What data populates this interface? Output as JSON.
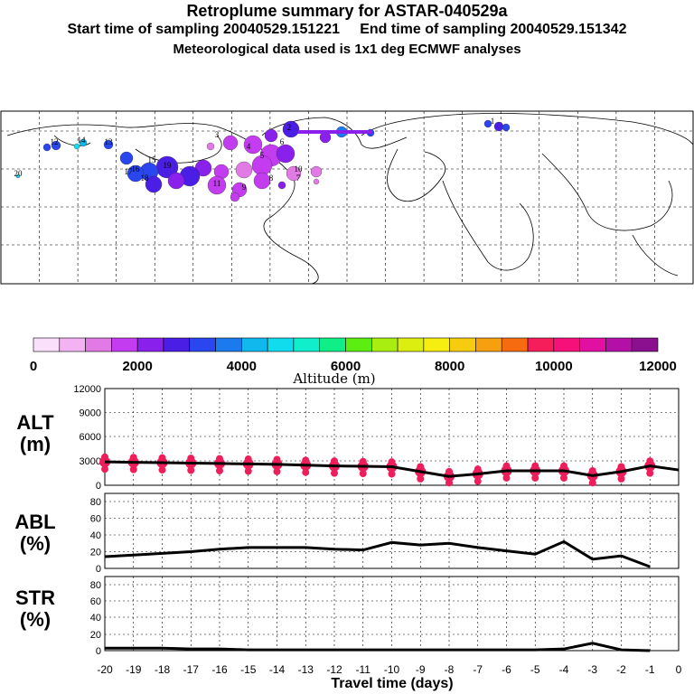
{
  "header": {
    "title": "Retroplume summary for ASTAR-040529a",
    "sampling": "Start time of sampling 20040529.151221     End time of sampling 20040529.151342",
    "meteo": "Meteorological data used is 1x1 deg ECMWF analyses"
  },
  "colors": {
    "scale": [
      "#fbe0fb",
      "#f3b3f3",
      "#e27ae6",
      "#c43cf0",
      "#8a20ec",
      "#4b1ee6",
      "#2a46ee",
      "#1a7aee",
      "#10b8ee",
      "#10dcee",
      "#10eecc",
      "#10ee88",
      "#5cee10",
      "#a8ee10",
      "#dcee10",
      "#f6ee10",
      "#f6cc10",
      "#f6a010",
      "#f66a10",
      "#f61e5a",
      "#f6107a",
      "#e210a0",
      "#b410a8",
      "#8a1090"
    ],
    "marker": "#ee1e5a",
    "line": "#000000"
  },
  "map": {
    "labels": [
      "10",
      "7",
      "6",
      "3",
      "12",
      "14",
      "13",
      "16",
      "18",
      "19",
      "15",
      "17",
      "11",
      "9",
      "2",
      "4",
      "5",
      "8",
      "1",
      "20"
    ]
  },
  "colorbar": {
    "ticks": [
      "0",
      "2000",
      "4000",
      "6000",
      "8000",
      "10000",
      "12000"
    ],
    "title": "Altitude (m)"
  },
  "chart_data": [
    {
      "type": "line",
      "panel": "ALT",
      "ylabel": "ALT",
      "yunit": "(m)",
      "ylim": [
        0,
        12000
      ],
      "yticks": [
        "12000",
        "9000",
        "6000",
        "3000",
        "0"
      ],
      "x": [
        -20,
        -19,
        -18,
        -17,
        -16,
        -15,
        -14,
        -13,
        -12,
        -11,
        -10,
        -9,
        -8,
        -7,
        -6,
        -5,
        -4,
        -3,
        -2,
        -1,
        0
      ],
      "values": [
        2900,
        2850,
        2800,
        2750,
        2700,
        2650,
        2600,
        2500,
        2400,
        2350,
        2300,
        1700,
        1100,
        1400,
        1800,
        1800,
        1800,
        1200,
        1700,
        2400,
        1900
      ]
    },
    {
      "type": "line",
      "panel": "ABL",
      "ylabel": "ABL",
      "yunit": "(%)",
      "ylim": [
        0,
        90
      ],
      "yticks": [
        "80",
        "60",
        "40",
        "20",
        "0"
      ],
      "x": [
        -20,
        -19,
        -18,
        -17,
        -16,
        -15,
        -14,
        -13,
        -12,
        -11,
        -10,
        -9,
        -8,
        -7,
        -6,
        -5,
        -4,
        -3,
        -2,
        -1
      ],
      "values": [
        14,
        16,
        18,
        20,
        23,
        25,
        25,
        25,
        23,
        22,
        31,
        28,
        30,
        25,
        21,
        17,
        32,
        11,
        15,
        2
      ]
    },
    {
      "type": "line",
      "panel": "STR",
      "ylabel": "STR",
      "yunit": "(%)",
      "ylim": [
        0,
        90
      ],
      "yticks": [
        "80",
        "60",
        "40",
        "20",
        "0"
      ],
      "x": [
        -20,
        -19,
        -18,
        -17,
        -16,
        -15,
        -14,
        -13,
        -12,
        -11,
        -10,
        -9,
        -8,
        -7,
        -6,
        -5,
        -4,
        -3,
        -2,
        -1
      ],
      "values": [
        3,
        3,
        3,
        2,
        2,
        1,
        1,
        1,
        1,
        1,
        1,
        1,
        1,
        1,
        1,
        1,
        2,
        9,
        1,
        0
      ]
    }
  ],
  "xaxis": {
    "ticks": [
      "-20",
      "-19",
      "-18",
      "-17",
      "-16",
      "-15",
      "-14",
      "-13",
      "-12",
      "-11",
      "-10",
      "-9",
      "-8",
      "-7",
      "-6",
      "-5",
      "-4",
      "-3",
      "-2",
      "-1",
      "0"
    ],
    "title": "Travel time (days)"
  }
}
